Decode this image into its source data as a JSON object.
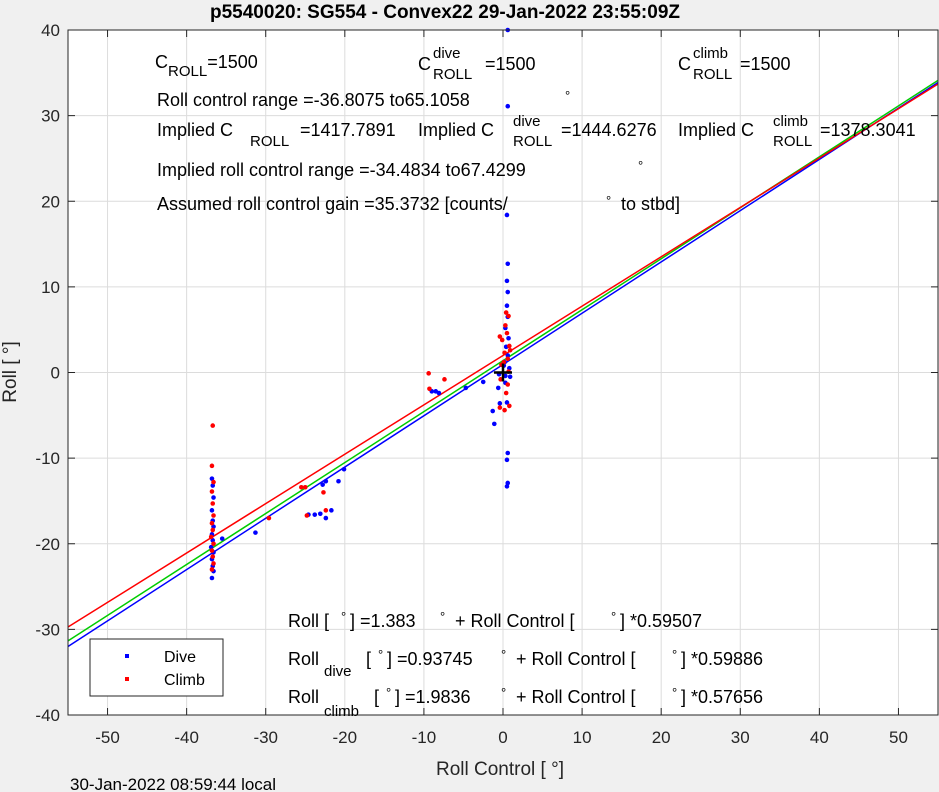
{
  "figure": {
    "title": "p5540020: SG554 - Convex22 29-Jan-2022 23:55:09Z",
    "footer": "30-Jan-2022 08:59:44 local"
  },
  "chart_data": {
    "type": "scatter",
    "xlabel": "Roll Control [   °]",
    "ylabel": "Roll [  °]",
    "xlim": [
      -55,
      55
    ],
    "ylim": [
      -40,
      40
    ],
    "xticks": [
      -50,
      -40,
      -30,
      -20,
      -10,
      0,
      10,
      20,
      30,
      40,
      50
    ],
    "yticks": [
      -40,
      -30,
      -20,
      -10,
      0,
      10,
      20,
      30,
      40
    ],
    "grid": true,
    "legend_position": "bottom-left",
    "colors": {
      "dive": "#0000ff",
      "climb": "#ff0000",
      "combined_fit": "#00cc00",
      "marker": "#000000"
    },
    "legend": [
      {
        "key": "dive",
        "label": "Dive"
      },
      {
        "key": "climb",
        "label": "Climb"
      }
    ],
    "series": [
      {
        "key": "dive",
        "name": "Dive",
        "points": [
          [
            -36.8,
            -24.0
          ],
          [
            -36.6,
            -23.2
          ],
          [
            -36.7,
            -22.6
          ],
          [
            -36.8,
            -21.8
          ],
          [
            -36.6,
            -21.0
          ],
          [
            -36.9,
            -20.4
          ],
          [
            -36.7,
            -19.6
          ],
          [
            -36.8,
            -18.9
          ],
          [
            -36.6,
            -18.0
          ],
          [
            -36.7,
            -17.3
          ],
          [
            -36.8,
            -16.1
          ],
          [
            -36.6,
            -14.6
          ],
          [
            -36.7,
            -13.2
          ],
          [
            -36.8,
            -12.4
          ],
          [
            -35.5,
            -19.4
          ],
          [
            -31.3,
            -18.7
          ],
          [
            -24.6,
            -16.6
          ],
          [
            -23.8,
            -16.6
          ],
          [
            -23.1,
            -16.5
          ],
          [
            -22.4,
            -17.0
          ],
          [
            -21.7,
            -16.1
          ],
          [
            -22.8,
            -13.1
          ],
          [
            -22.4,
            -12.7
          ],
          [
            -20.8,
            -12.7
          ],
          [
            -20.1,
            -11.3
          ],
          [
            -9.0,
            -2.2
          ],
          [
            -8.5,
            -2.2
          ],
          [
            -8.1,
            -2.4
          ],
          [
            -4.7,
            -1.8
          ],
          [
            -2.5,
            -1.1
          ],
          [
            -1.3,
            -4.5
          ],
          [
            -1.1,
            -6.0
          ],
          [
            -0.4,
            -3.6
          ],
          [
            -0.6,
            -1.8
          ],
          [
            0.3,
            -1.2
          ],
          [
            0.5,
            -3.5
          ],
          [
            0.6,
            -9.4
          ],
          [
            0.5,
            -10.2
          ],
          [
            0.6,
            -12.9
          ],
          [
            0.5,
            -13.3
          ],
          [
            0.3,
            -0.4
          ],
          [
            0.8,
            0.5
          ],
          [
            0.2,
            1.2
          ],
          [
            0.6,
            2.0
          ],
          [
            0.4,
            3.0
          ],
          [
            0.7,
            4.0
          ],
          [
            0.3,
            5.2
          ],
          [
            0.6,
            6.5
          ],
          [
            0.5,
            7.8
          ],
          [
            0.6,
            9.4
          ],
          [
            0.5,
            10.7
          ],
          [
            0.6,
            12.7
          ],
          [
            0.5,
            18.4
          ],
          [
            0.6,
            31.1
          ],
          [
            0.6,
            40.0
          ],
          [
            -0.5,
            -0.2
          ],
          [
            0.9,
            -0.5
          ],
          [
            0.1,
            0.8
          ]
        ]
      },
      {
        "key": "climb",
        "name": "Climb",
        "points": [
          [
            -36.7,
            -6.2
          ],
          [
            -36.8,
            -10.9
          ],
          [
            -36.6,
            -12.8
          ],
          [
            -36.8,
            -13.9
          ],
          [
            -36.7,
            -15.3
          ],
          [
            -36.6,
            -16.7
          ],
          [
            -36.8,
            -17.6
          ],
          [
            -36.7,
            -18.4
          ],
          [
            -36.9,
            -19.2
          ],
          [
            -36.6,
            -20.0
          ],
          [
            -36.8,
            -20.8
          ],
          [
            -36.7,
            -21.5
          ],
          [
            -36.6,
            -22.3
          ],
          [
            -36.8,
            -23.0
          ],
          [
            -29.6,
            -17.0
          ],
          [
            -25.5,
            -13.4
          ],
          [
            -25.0,
            -13.4
          ],
          [
            -24.8,
            -16.7
          ],
          [
            -22.7,
            -14.0
          ],
          [
            -22.4,
            -16.1
          ],
          [
            -9.4,
            -0.1
          ],
          [
            -9.3,
            -1.9
          ],
          [
            -7.4,
            -0.8
          ],
          [
            -0.4,
            -4.1
          ],
          [
            0.2,
            -4.4
          ],
          [
            0.8,
            -3.9
          ],
          [
            0.4,
            -2.4
          ],
          [
            -0.3,
            -0.8
          ],
          [
            0.7,
            0.1
          ],
          [
            -0.2,
            0.9
          ],
          [
            0.6,
            1.6
          ],
          [
            0.2,
            2.3
          ],
          [
            0.8,
            3.1
          ],
          [
            -0.1,
            3.8
          ],
          [
            0.5,
            4.6
          ],
          [
            0.3,
            5.5
          ],
          [
            0.7,
            6.6
          ],
          [
            0.4,
            7.0
          ],
          [
            0.1,
            1.2
          ],
          [
            0.9,
            2.6
          ],
          [
            -0.4,
            4.2
          ],
          [
            0.6,
            -1.4
          ]
        ]
      }
    ],
    "fits": [
      {
        "key": "dive",
        "intercept": 0.93745,
        "slope": 0.59886
      },
      {
        "key": "combined",
        "intercept": 1.383,
        "slope": 0.59507
      },
      {
        "key": "climb",
        "intercept": 1.9836,
        "slope": 0.57656
      }
    ],
    "origin_marker": [
      0,
      0
    ]
  },
  "annotations": {
    "c_roll": {
      "base": "C",
      "sub": "ROLL",
      "value": "=1500"
    },
    "c_roll_dive": {
      "base": "C",
      "sup": "dive",
      "sub": "ROLL",
      "value": "=1500"
    },
    "c_roll_climb": {
      "base": "C",
      "sup": "climb",
      "sub": "ROLL",
      "value": "=1500"
    },
    "roll_control_range": {
      "text": "Roll control range =-36.8075 to65.1058",
      "degree": "°"
    },
    "implied_c_roll": {
      "prefix": "Implied C",
      "sub": "ROLL",
      "value": "=1417.7891"
    },
    "implied_c_roll_dive": {
      "prefix": "Implied C",
      "sup": "dive",
      "sub": "ROLL",
      "value": "=1444.6276"
    },
    "implied_c_roll_climb": {
      "prefix": "Implied C",
      "sup": "climb",
      "sub": "ROLL",
      "value": "=1378.3041"
    },
    "implied_roll_control_range": {
      "text": "Implied roll control range =-34.4834 to67.4299",
      "degree": "°"
    },
    "assumed_gain": {
      "text": "Assumed roll control gain =35.3732 [counts/",
      "degree": "°",
      "suffix": "to stbd]"
    },
    "eq_combined": {
      "part1": "Roll [ ",
      "deg": "°",
      "part2": "] =1.383",
      "part3": "+ Roll Control [",
      "part4": "] *0.59507"
    },
    "eq_dive": {
      "roll": "Roll",
      "sub": "dive",
      "part1": "[ ",
      "deg": "°",
      "part2": "] =0.93745",
      "part3": "+ Roll Control [",
      "part4": "] *0.59886"
    },
    "eq_climb": {
      "roll": "Roll",
      "sub": "climb",
      "part1": "[ ",
      "deg": "°",
      "part2": "] =1.9836",
      "part3": "+ Roll Control [",
      "part4": "] *0.57656"
    }
  }
}
